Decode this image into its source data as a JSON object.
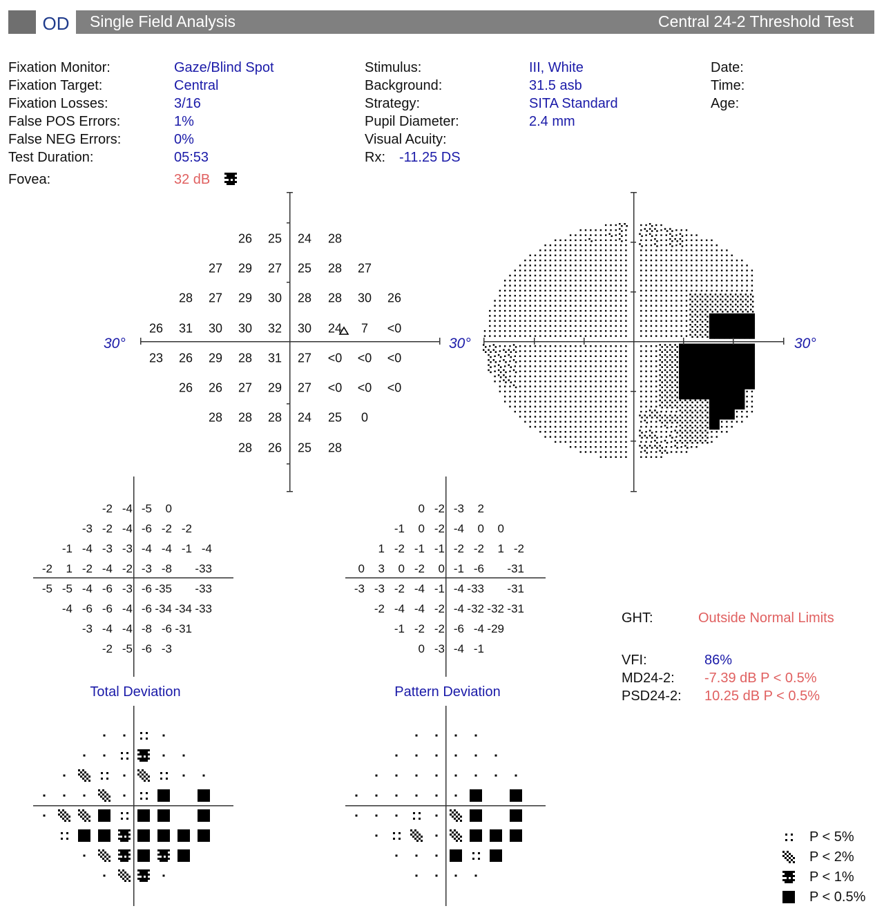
{
  "header": {
    "eye": "OD",
    "title": "Single Field Analysis",
    "test": "Central 24-2 Threshold Test"
  },
  "info_left": [
    {
      "label": "Fixation Monitor:",
      "value": "Gaze/Blind Spot"
    },
    {
      "label": "Fixation Target:",
      "value": "Central"
    },
    {
      "label": "Fixation Losses:",
      "value": "3/16"
    },
    {
      "label": "False POS Errors:",
      "value": "1%"
    },
    {
      "label": "False NEG Errors:",
      "value": "0%"
    },
    {
      "label": "Test Duration:",
      "value": "05:53"
    }
  ],
  "fovea": {
    "label": "Fovea:",
    "value": "32 dB",
    "symbol": "p1"
  },
  "info_mid": [
    {
      "label": "Stimulus:",
      "value": "III, White"
    },
    {
      "label": "Background:",
      "value": "31.5 asb"
    },
    {
      "label": "Strategy:",
      "value": "SITA Standard"
    },
    {
      "label": "Pupil Diameter:",
      "value": "2.4 mm"
    },
    {
      "label": "Visual Acuity:",
      "value": ""
    }
  ],
  "rx": {
    "label": "Rx:",
    "value": "-11.25 DS"
  },
  "info_right": [
    {
      "label": "Date:"
    },
    {
      "label": "Time:"
    },
    {
      "label": "Age:"
    }
  ],
  "axis_label": "30°",
  "threshold": [
    [
      null,
      null,
      null,
      "26",
      "25",
      "24",
      "28",
      null,
      null
    ],
    [
      null,
      null,
      "27",
      "29",
      "27",
      "25",
      "28",
      "27",
      null
    ],
    [
      null,
      "28",
      "27",
      "29",
      "30",
      "28",
      "28",
      "30",
      "26"
    ],
    [
      "26",
      "31",
      "30",
      "30",
      "32",
      "30",
      "24",
      "7",
      "<0"
    ],
    [
      "23",
      "26",
      "29",
      "28",
      "31",
      "27",
      "<0",
      "<0",
      "<0"
    ],
    [
      null,
      "26",
      "26",
      "27",
      "29",
      "27",
      "<0",
      "<0",
      "<0"
    ],
    [
      null,
      null,
      "28",
      "28",
      "28",
      "24",
      "25",
      "0",
      null
    ],
    [
      null,
      null,
      null,
      "28",
      "26",
      "25",
      "28",
      null,
      null
    ]
  ],
  "total_deviation": {
    "title": "Total Deviation",
    "values": [
      [
        null,
        null,
        null,
        "-2",
        "-4",
        "-5",
        "0",
        null,
        null
      ],
      [
        null,
        null,
        "-3",
        "-2",
        "-4",
        "-6",
        "-2",
        "-2",
        null
      ],
      [
        null,
        "-1",
        "-4",
        "-3",
        "-3",
        "-4",
        "-4",
        "-1",
        "-4"
      ],
      [
        "-2",
        "1",
        "-2",
        "-4",
        "-2",
        "-3",
        "-8",
        "",
        "-33"
      ],
      [
        "-5",
        "-5",
        "-4",
        "-6",
        "-3",
        "-6",
        "-35",
        "",
        "-33"
      ],
      [
        null,
        "-4",
        "-6",
        "-6",
        "-4",
        "-6",
        "-34",
        "-34",
        "-33"
      ],
      [
        null,
        null,
        "-3",
        "-4",
        "-4",
        "-8",
        "-6",
        "-31",
        null
      ],
      [
        null,
        null,
        null,
        "-2",
        "-5",
        "-6",
        "-3",
        null,
        null
      ]
    ],
    "probability": [
      [
        null,
        null,
        null,
        "n",
        "n",
        "p5",
        "n",
        null,
        null
      ],
      [
        null,
        null,
        "n",
        "n",
        "p5",
        "p1",
        "n",
        "n",
        null
      ],
      [
        null,
        "n",
        "p2",
        "p5",
        "n",
        "p2",
        "p5",
        "n",
        "n"
      ],
      [
        "n",
        "n",
        "n",
        "p2",
        "n",
        "p5",
        "p05",
        "",
        "p05"
      ],
      [
        "n",
        "p2",
        "p2",
        "p05",
        "p5",
        "p05",
        "p05",
        "",
        "p05"
      ],
      [
        null,
        "p5",
        "p05",
        "p05",
        "p1",
        "p05",
        "p05",
        "p05",
        "p05"
      ],
      [
        null,
        null,
        "n",
        "p2",
        "p1",
        "p05",
        "p1",
        "p05",
        null
      ],
      [
        null,
        null,
        null,
        "n",
        "p2",
        "p1",
        "n",
        null,
        null
      ]
    ]
  },
  "pattern_deviation": {
    "title": "Pattern Deviation",
    "values": [
      [
        null,
        null,
        null,
        "0",
        "-2",
        "-3",
        "2",
        null,
        null
      ],
      [
        null,
        null,
        "-1",
        "0",
        "-2",
        "-4",
        "0",
        "0",
        null
      ],
      [
        null,
        "1",
        "-2",
        "-1",
        "-1",
        "-2",
        "-2",
        "1",
        "-2"
      ],
      [
        "0",
        "3",
        "0",
        "-2",
        "0",
        "-1",
        "-6",
        "",
        "-31"
      ],
      [
        "-3",
        "-3",
        "-2",
        "-4",
        "-1",
        "-4",
        "-33",
        "",
        "-31"
      ],
      [
        null,
        "-2",
        "-4",
        "-4",
        "-2",
        "-4",
        "-32",
        "-32",
        "-31"
      ],
      [
        null,
        null,
        "-1",
        "-2",
        "-2",
        "-6",
        "-4",
        "-29",
        null
      ],
      [
        null,
        null,
        null,
        "0",
        "-3",
        "-4",
        "-1",
        null,
        null
      ]
    ],
    "probability": [
      [
        null,
        null,
        null,
        "n",
        "n",
        "n",
        "n",
        null,
        null
      ],
      [
        null,
        null,
        "n",
        "n",
        "n",
        "n",
        "n",
        "n",
        null
      ],
      [
        null,
        "n",
        "n",
        "n",
        "n",
        "n",
        "n",
        "n",
        "n"
      ],
      [
        "n",
        "n",
        "n",
        "n",
        "n",
        "n",
        "p05",
        "",
        "p05"
      ],
      [
        "n",
        "n",
        "n",
        "p5",
        "n",
        "p2",
        "p05",
        "",
        "p05"
      ],
      [
        null,
        "n",
        "p5",
        "p2",
        "n",
        "p2",
        "p05",
        "p05",
        "p05"
      ],
      [
        null,
        null,
        "n",
        "n",
        "n",
        "p05",
        "p5",
        "p05",
        null
      ],
      [
        null,
        null,
        null,
        "n",
        "n",
        "n",
        "n",
        null,
        null
      ]
    ]
  },
  "ght": {
    "label": "GHT:",
    "value": "Outside Normal Limits"
  },
  "indices": [
    {
      "label": "VFI:",
      "value": "86%",
      "color": "#1a1aa8"
    },
    {
      "label": "MD24-2:",
      "value": "-7.39 dB P < 0.5%",
      "color": "#e06060"
    },
    {
      "label": "PSD24-2:",
      "value": "10.25 dB P < 0.5%",
      "color": "#e06060"
    }
  ],
  "legend": [
    {
      "symbol": "p5",
      "label": "P < 5%"
    },
    {
      "symbol": "p2",
      "label": "P < 2%"
    },
    {
      "symbol": "p1",
      "label": "P < 1%"
    },
    {
      "symbol": "p05",
      "label": "P < 0.5%"
    }
  ],
  "colors": {
    "header": "#808080",
    "value_blue": "#1a1aa8",
    "alert_red": "#e06060"
  }
}
